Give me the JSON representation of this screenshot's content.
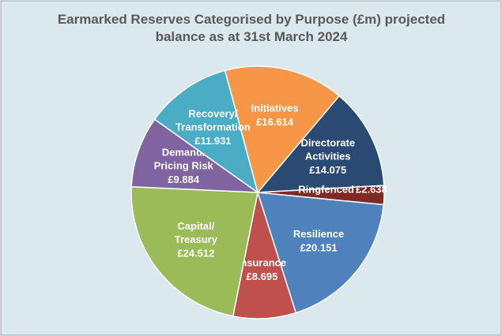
{
  "chart_data": {
    "type": "pie",
    "title": "Earmarked Reserves Categorised by Purpose (£m) projected balance as at 31st March 2024",
    "categories": [
      "Initiatives",
      "Directorate Activities",
      "Ringfenced",
      "Resilience",
      "Insurance",
      "Capital/ Treasury",
      "Demand/ Pricing Risk",
      "Recovery/ Transformation"
    ],
    "values": [
      16.614,
      14.075,
      2.638,
      20.151,
      8.695,
      24.512,
      9.884,
      11.931
    ],
    "value_labels": [
      "£16.614",
      "£14.075",
      "£2.638",
      "£20.151",
      "£8.695",
      "£24.512",
      "£9.884",
      "£11.931"
    ],
    "colors": [
      "#f79646",
      "#2b4a73",
      "#7f2a27",
      "#4f81bd",
      "#c0504d",
      "#9bbb59",
      "#8064a2",
      "#4bacc6"
    ]
  }
}
